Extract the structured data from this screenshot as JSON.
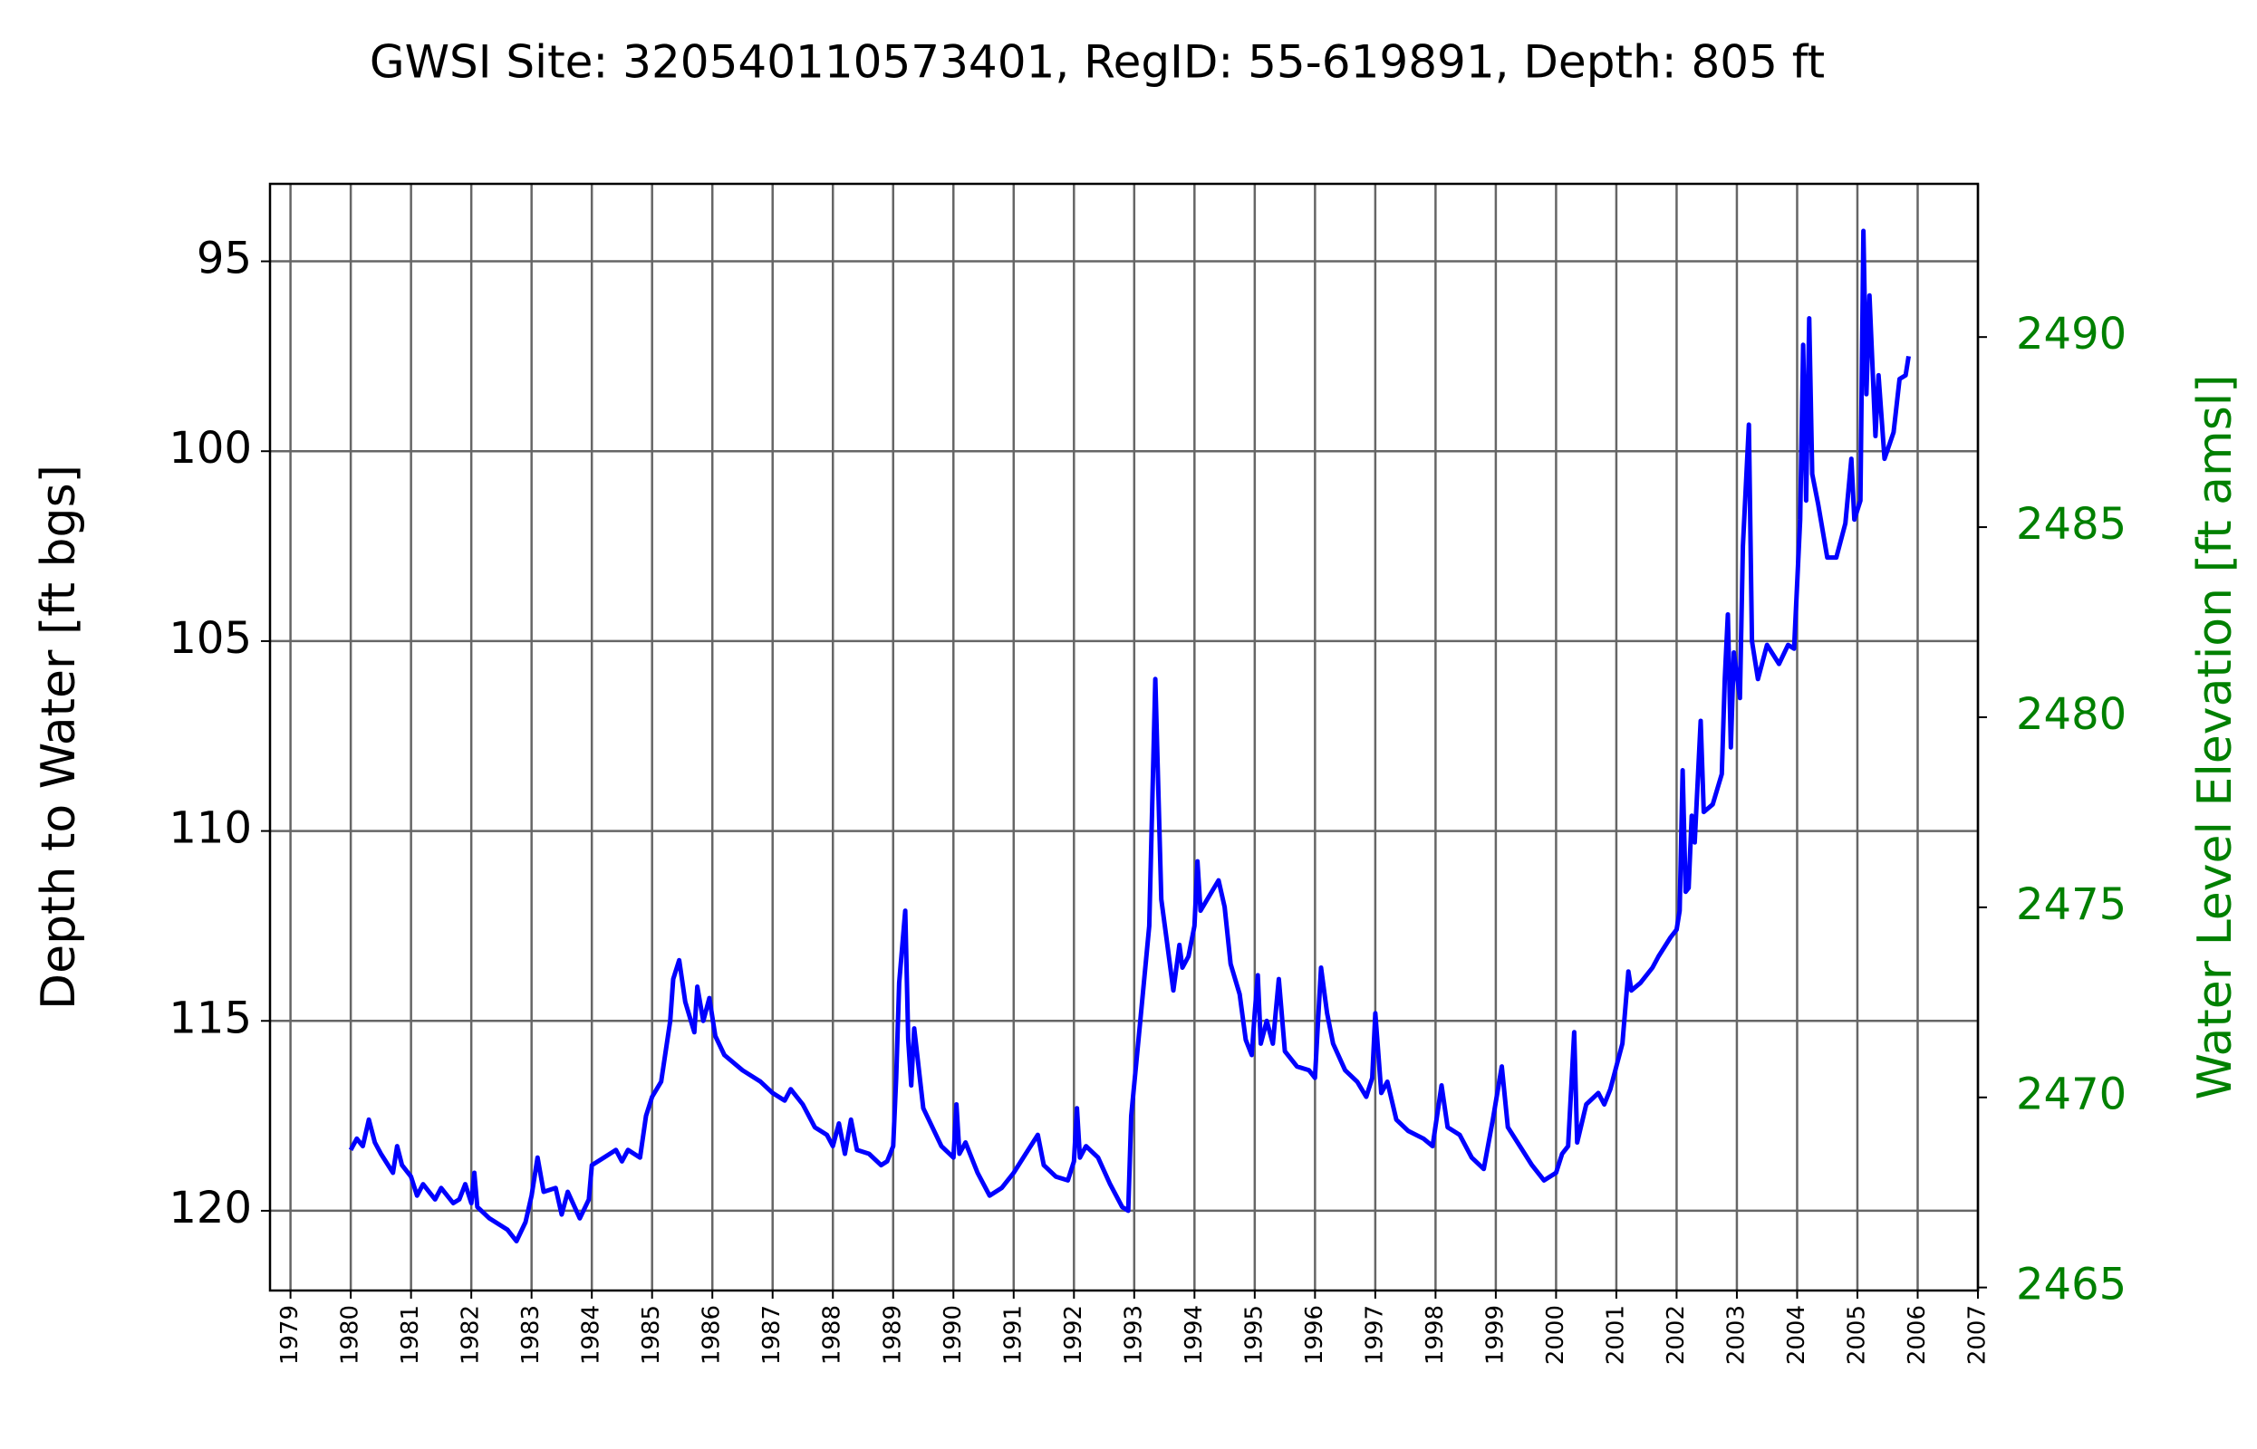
{
  "chart_data": {
    "type": "line",
    "title": "GWSI Site: 320540110573401, RegID: 55-619891, Depth: 805 ft",
    "ylabel": "Depth to Water [ft bgs]",
    "y2label": "Water Level Elevation [ft amsl]",
    "color": "#0000ff",
    "y2color": "#008000",
    "grid": true,
    "xlim": [
      1978.66,
      2007
    ],
    "xticks": [
      1979,
      1980,
      1981,
      1982,
      1983,
      1984,
      1985,
      1986,
      1987,
      1988,
      1989,
      1990,
      1991,
      1992,
      1993,
      1994,
      1995,
      1996,
      1997,
      1998,
      1999,
      2000,
      2001,
      2002,
      2003,
      2004,
      2005,
      2006,
      2007
    ],
    "ylim": [
      122.1,
      92.96
    ],
    "yticks": [
      95,
      100,
      105,
      110,
      115,
      120
    ],
    "y2lim": [
      2464.92,
      2494.03
    ],
    "y2ticks": [
      2465,
      2470,
      2475,
      2480,
      2485,
      2490
    ],
    "x": [
      1980.0,
      1980.1,
      1980.2,
      1980.3,
      1980.4,
      1980.5,
      1980.7,
      1980.77,
      1980.85,
      1981.0,
      1981.1,
      1981.2,
      1981.4,
      1981.5,
      1981.7,
      1981.8,
      1981.9,
      1982.0,
      1982.05,
      1982.1,
      1982.3,
      1982.6,
      1982.75,
      1982.9,
      1983.0,
      1983.1,
      1983.2,
      1983.4,
      1983.5,
      1983.6,
      1983.8,
      1983.95,
      1984.0,
      1984.2,
      1984.4,
      1984.5,
      1984.6,
      1984.8,
      1984.9,
      1985.0,
      1985.15,
      1985.3,
      1985.35,
      1985.45,
      1985.55,
      1985.7,
      1985.75,
      1985.85,
      1985.95,
      1986.05,
      1986.2,
      1986.5,
      1986.8,
      1987.0,
      1987.2,
      1987.3,
      1987.5,
      1987.7,
      1987.9,
      1988.0,
      1988.1,
      1988.2,
      1988.3,
      1988.4,
      1988.6,
      1988.8,
      1988.9,
      1989.0,
      1989.05,
      1989.1,
      1989.2,
      1989.25,
      1989.3,
      1989.35,
      1989.5,
      1989.8,
      1990.0,
      1990.05,
      1990.1,
      1990.2,
      1990.4,
      1990.6,
      1990.8,
      1991.0,
      1991.2,
      1991.4,
      1991.5,
      1991.7,
      1991.9,
      1992.0,
      1992.05,
      1992.1,
      1992.2,
      1992.4,
      1992.6,
      1992.8,
      1992.9,
      1992.95,
      1993.1,
      1993.25,
      1993.35,
      1993.45,
      1993.55,
      1993.65,
      1993.75,
      1993.8,
      1993.9,
      1994.0,
      1994.05,
      1994.1,
      1994.25,
      1994.4,
      1994.5,
      1994.6,
      1994.75,
      1994.85,
      1994.95,
      1995.0,
      1995.05,
      1995.1,
      1995.2,
      1995.3,
      1995.4,
      1995.5,
      1995.7,
      1995.9,
      1996.0,
      1996.05,
      1996.1,
      1996.2,
      1996.3,
      1996.5,
      1996.7,
      1996.85,
      1996.95,
      1997.0,
      1997.1,
      1997.2,
      1997.35,
      1997.55,
      1997.8,
      1997.95,
      1998.1,
      1998.2,
      1998.4,
      1998.6,
      1998.8,
      1998.95,
      1999.1,
      1999.2,
      1999.4,
      1999.6,
      1999.8,
      2000.0,
      2000.1,
      2000.2,
      2000.3,
      2000.35,
      2000.5,
      2000.7,
      2000.8,
      2000.9,
      2001.0,
      2001.1,
      2001.2,
      2001.25,
      2001.4,
      2001.6,
      2001.7,
      2001.9,
      2002.0,
      2002.05,
      2002.1,
      2002.15,
      2002.2,
      2002.25,
      2002.3,
      2002.4,
      2002.45,
      2002.6,
      2002.75,
      2002.8,
      2002.85,
      2002.9,
      2002.95,
      2003.05,
      2003.1,
      2003.2,
      2003.25,
      2003.35,
      2003.5,
      2003.7,
      2003.85,
      2003.95,
      2004.05,
      2004.1,
      2004.15,
      2004.2,
      2004.25,
      2004.35,
      2004.5,
      2004.65,
      2004.8,
      2004.9,
      2004.95,
      2005.05,
      2005.1,
      2005.15,
      2005.2,
      2005.3,
      2005.35,
      2005.45,
      2005.6,
      2005.7,
      2005.8,
      2005.85
    ],
    "values": [
      118.4,
      118.1,
      118.3,
      117.6,
      118.2,
      118.5,
      119.0,
      118.3,
      118.8,
      119.1,
      119.6,
      119.3,
      119.7,
      119.4,
      119.8,
      119.7,
      119.3,
      119.8,
      119.0,
      119.9,
      120.2,
      120.5,
      120.8,
      120.3,
      119.6,
      118.6,
      119.5,
      119.4,
      120.1,
      119.5,
      120.2,
      119.7,
      118.8,
      118.6,
      118.4,
      118.7,
      118.4,
      118.6,
      117.5,
      117.0,
      116.6,
      115.0,
      113.9,
      113.4,
      114.5,
      115.3,
      114.1,
      115.0,
      114.4,
      115.4,
      115.9,
      116.3,
      116.6,
      116.9,
      117.1,
      116.8,
      117.2,
      117.8,
      118.0,
      118.3,
      117.7,
      118.5,
      117.6,
      118.4,
      118.5,
      118.8,
      118.7,
      118.3,
      116.5,
      114.0,
      112.1,
      115.5,
      116.7,
      115.2,
      117.3,
      118.3,
      118.6,
      117.2,
      118.5,
      118.2,
      119.0,
      119.6,
      119.4,
      119.0,
      118.5,
      118.0,
      118.8,
      119.1,
      119.2,
      118.7,
      117.3,
      118.6,
      118.3,
      118.6,
      119.3,
      119.9,
      120.0,
      117.5,
      115.0,
      112.5,
      106.0,
      111.8,
      113.0,
      114.2,
      113.0,
      113.6,
      113.3,
      112.5,
      110.8,
      112.1,
      111.7,
      111.3,
      112.0,
      113.5,
      114.3,
      115.5,
      115.9,
      114.8,
      113.8,
      115.6,
      115.0,
      115.6,
      113.9,
      115.8,
      116.2,
      116.3,
      116.5,
      115.0,
      113.6,
      114.8,
      115.6,
      116.3,
      116.6,
      117.0,
      116.5,
      114.8,
      116.9,
      116.6,
      117.6,
      117.9,
      118.1,
      118.3,
      116.7,
      117.8,
      118.0,
      118.6,
      118.9,
      117.6,
      116.2,
      117.8,
      118.3,
      118.8,
      119.2,
      119.0,
      118.5,
      118.3,
      115.3,
      118.2,
      117.2,
      116.9,
      117.2,
      116.8,
      116.2,
      115.6,
      113.7,
      114.2,
      114.0,
      113.6,
      113.3,
      112.8,
      112.6,
      112.1,
      108.4,
      111.6,
      111.5,
      109.6,
      110.3,
      107.1,
      109.5,
      109.3,
      108.5,
      106.0,
      104.3,
      107.8,
      105.3,
      106.5,
      102.5,
      99.3,
      105.0,
      106.0,
      105.1,
      105.6,
      105.1,
      105.2,
      101.8,
      97.2,
      101.3,
      96.5,
      100.6,
      101.4,
      102.8,
      102.8,
      101.9,
      100.2,
      101.8,
      101.3,
      94.2,
      98.5,
      95.9,
      99.6,
      98.0,
      100.2,
      99.5,
      98.1,
      98.0,
      97.5
    ]
  }
}
